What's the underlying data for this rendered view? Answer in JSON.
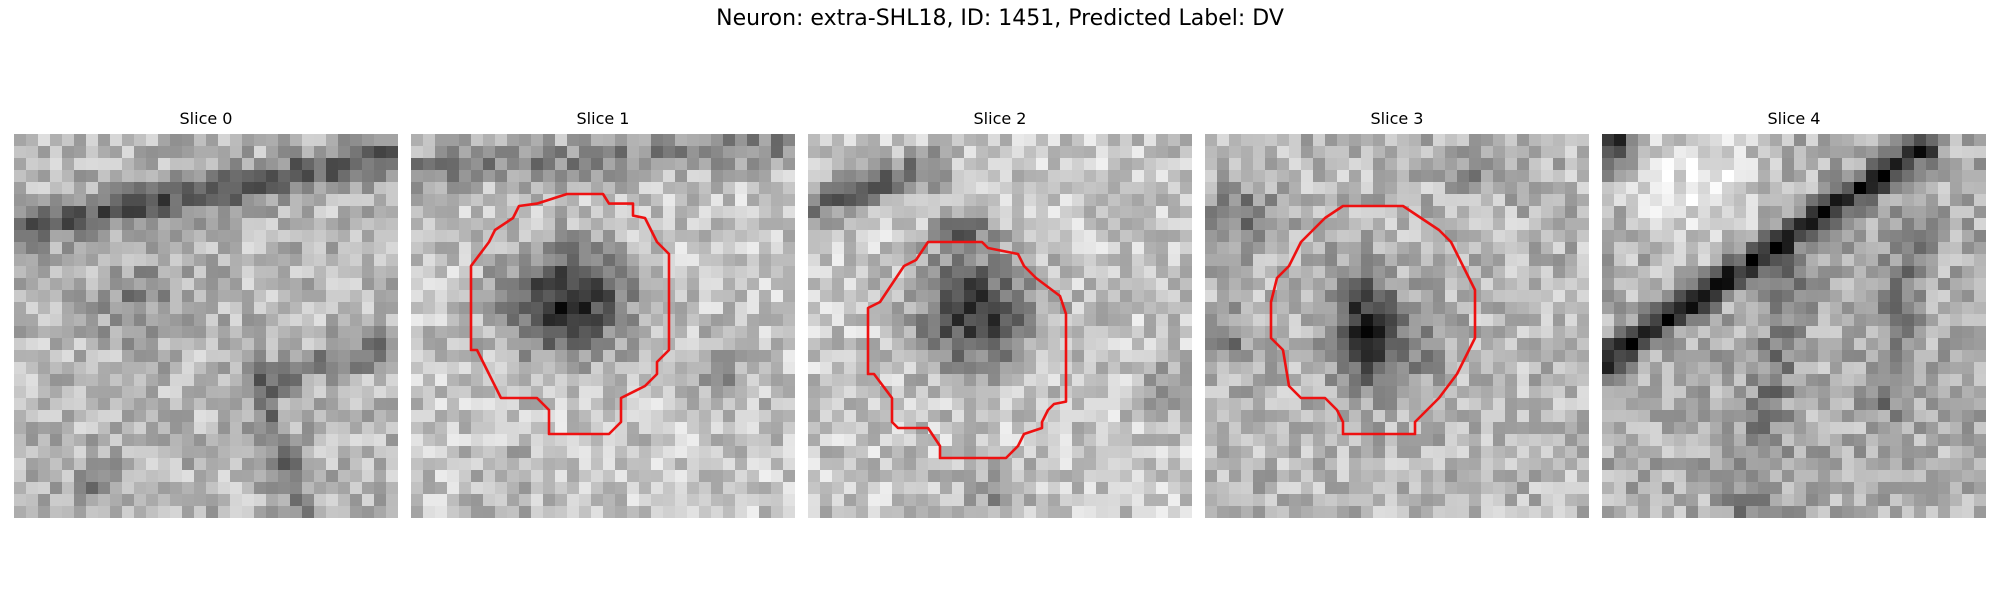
{
  "figure": {
    "title": "Neuron: extra-SHL18, ID: 1451, Predicted Label: DV"
  },
  "colors": {
    "contour": "#ee1111",
    "background": "#ffffff"
  },
  "panels": [
    {
      "title": "Slice 0",
      "has_contour": false
    },
    {
      "title": "Slice 1",
      "has_contour": true
    },
    {
      "title": "Slice 2",
      "has_contour": true
    },
    {
      "title": "Slice 3",
      "has_contour": true
    },
    {
      "title": "Slice 4",
      "has_contour": false
    }
  ]
}
